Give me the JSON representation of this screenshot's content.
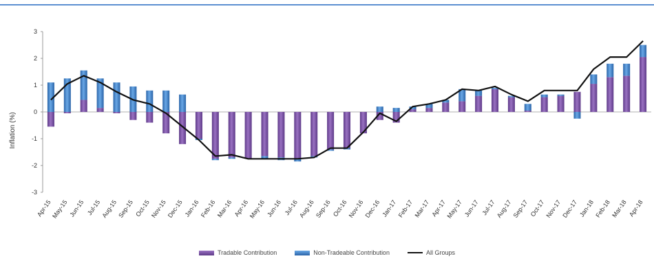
{
  "chart_data": {
    "type": "bar",
    "title": "",
    "xlabel": "",
    "ylabel": "Inflation (%)",
    "ylim": [
      -3,
      3
    ],
    "yticks": [
      -3,
      -2,
      -1,
      0,
      1,
      2,
      3
    ],
    "grid": false,
    "legend_position": "bottom",
    "categories": [
      "Apr-15",
      "May-15",
      "Jun-15",
      "Jul-15",
      "Aug-15",
      "Sep-15",
      "Oct-15",
      "Nov-15",
      "Dec-15",
      "Jan-16",
      "Feb-16",
      "Mar-16",
      "Apr-16",
      "May-16",
      "Jun-16",
      "Jul-16",
      "Aug-16",
      "Sep-16",
      "Oct-16",
      "Nov-16",
      "Dec-16",
      "Jan-17",
      "Feb-17",
      "Mar-17",
      "Apr-17",
      "May-17",
      "Jun-17",
      "Jul-17",
      "Aug-17",
      "Sep-17",
      "Oct-17",
      "Nov-17",
      "Dec-17",
      "Jan-18",
      "Feb-18",
      "Mar-18",
      "Apr-18"
    ],
    "series": [
      {
        "name": "Tradable Contribution",
        "kind": "bar",
        "color": "#7a4fa3",
        "values": [
          -0.55,
          -0.05,
          0.45,
          0.15,
          -0.05,
          -0.3,
          -0.4,
          -0.8,
          -1.2,
          -1.0,
          -1.75,
          -1.7,
          -1.75,
          -1.65,
          -1.7,
          -1.75,
          -1.65,
          -1.4,
          -1.35,
          -0.8,
          -0.3,
          -0.4,
          0.1,
          0.15,
          0.35,
          0.4,
          0.6,
          0.85,
          0.55,
          0.05,
          0.55,
          0.6,
          0.75,
          1.05,
          1.3,
          1.35,
          2.05
        ]
      },
      {
        "name": "Non-Tradeable Contribution",
        "kind": "bar",
        "color": "#3f7fc6",
        "values": [
          1.1,
          1.25,
          1.1,
          1.1,
          1.1,
          0.95,
          0.8,
          0.8,
          0.65,
          -0.05,
          -0.05,
          -0.05,
          0.0,
          -0.1,
          -0.1,
          -0.1,
          -0.05,
          -0.05,
          -0.05,
          0.0,
          0.2,
          0.15,
          0.1,
          0.15,
          0.1,
          0.45,
          0.2,
          0.05,
          0.05,
          0.25,
          0.1,
          0.05,
          -0.25,
          0.35,
          0.5,
          0.45,
          0.45
        ]
      },
      {
        "name": "All Groups",
        "kind": "line",
        "color": "#111111",
        "values": [
          0.45,
          1.05,
          1.35,
          1.1,
          0.75,
          0.45,
          0.3,
          -0.05,
          -0.55,
          -1.05,
          -1.65,
          -1.6,
          -1.75,
          -1.75,
          -1.75,
          -1.75,
          -1.7,
          -1.35,
          -1.35,
          -0.75,
          -0.05,
          -0.35,
          0.2,
          0.3,
          0.45,
          0.85,
          0.8,
          0.95,
          0.65,
          0.4,
          0.8,
          0.8,
          0.8,
          1.6,
          2.05,
          2.05,
          2.65
        ]
      }
    ]
  }
}
